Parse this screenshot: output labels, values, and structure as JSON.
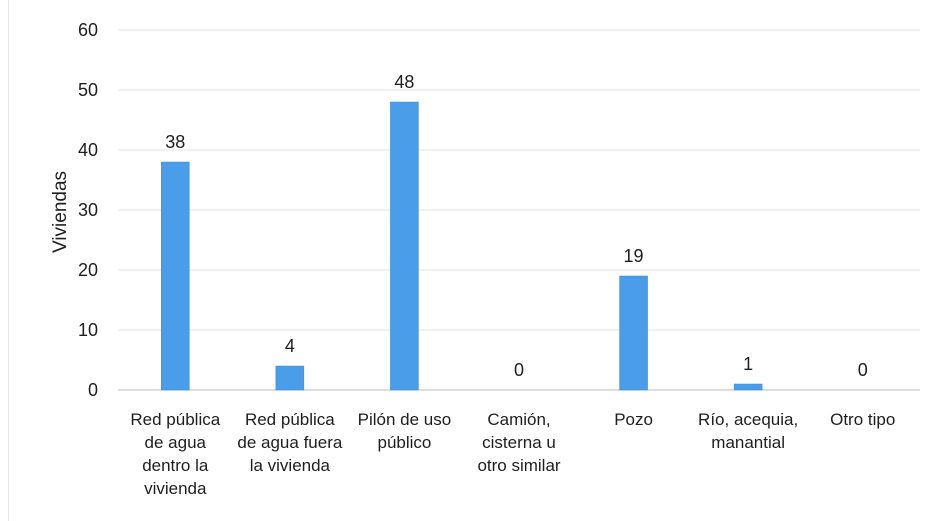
{
  "chart_data": {
    "type": "bar",
    "title": "",
    "ylabel": "Viviendas",
    "xlabel": "",
    "ylim": [
      0,
      60
    ],
    "yticks": [
      0,
      10,
      20,
      30,
      40,
      50,
      60
    ],
    "grid": true,
    "bar_color": "#4a9de8",
    "categories": [
      [
        "Red pública",
        "de agua",
        "dentro la",
        "vivienda"
      ],
      [
        "Red pública",
        "de agua fuera",
        "la vivienda"
      ],
      [
        "Pilón de uso",
        "público"
      ],
      [
        "Camión,",
        "cisterna u",
        "otro similar"
      ],
      [
        "Pozo"
      ],
      [
        "Río, acequia,",
        "manantial"
      ],
      [
        "Otro tipo"
      ]
    ],
    "values": [
      38,
      4,
      48,
      0,
      19,
      1,
      0
    ]
  }
}
